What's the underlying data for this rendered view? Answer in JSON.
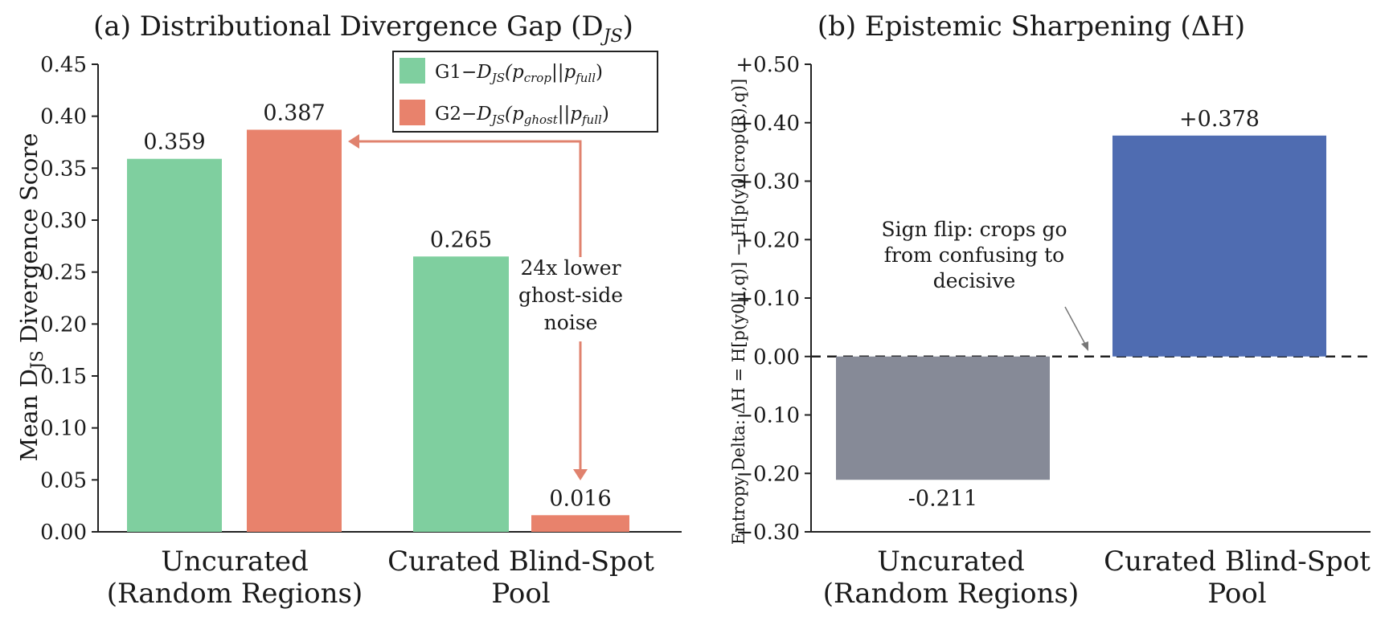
{
  "colors": {
    "g1": "#7fcf9f",
    "g2": "#e8826c",
    "neg": "#868a97",
    "pos": "#4f6cb1",
    "arrow": "#e0826e"
  },
  "chart_data": [
    {
      "type": "bar",
      "title": "(a) Distributional Divergence Gap (D",
      "title_sub": "JS",
      "title_end": ")",
      "ylabel": "Mean D",
      "ylabel_sub": "JS",
      "ylabel_end": " Divergence Score",
      "ylim": [
        0,
        0.45
      ],
      "yticks": [
        "0.00",
        "0.05",
        "0.10",
        "0.15",
        "0.20",
        "0.25",
        "0.30",
        "0.35",
        "0.40",
        "0.45"
      ],
      "categories": [
        [
          "Uncurated",
          "(Random Regions)"
        ],
        [
          "Curated Blind-Spot",
          "Pool"
        ]
      ],
      "series": [
        {
          "name": "G1−D_JS(p_crop||p_full)",
          "color_key": "g1",
          "values": [
            0.359,
            0.265
          ],
          "labels": [
            "0.359",
            "0.265"
          ]
        },
        {
          "name": "G2−D_JS(p_ghost||p_full)",
          "color_key": "g2",
          "values": [
            0.387,
            0.016
          ],
          "labels": [
            "0.387",
            "0.016"
          ]
        }
      ],
      "legend": {
        "position": "top-right",
        "items": [
          {
            "prefix": "G1−",
            "d": "D",
            "dsub": "JS",
            "open": "(p",
            "p1sub": "crop",
            "mid": "||p",
            "p2sub": "full",
            "close": ")"
          },
          {
            "prefix": "G2−",
            "d": "D",
            "dsub": "JS",
            "open": "(p",
            "p1sub": "ghost",
            "mid": "||p",
            "p2sub": "full",
            "close": ")"
          }
        ]
      },
      "annotation": [
        "24x lower",
        "ghost-side",
        "noise"
      ],
      "grid": false
    },
    {
      "type": "bar",
      "title": "(b) Epistemic Sharpening (ΔH)",
      "ylabel": "Entropy Delta: ΔH = H[p(y0|I,q)] − H[p(y0|crop(R),q)]",
      "ylim": [
        -0.3,
        0.5
      ],
      "yticks": [
        "−0.30",
        "−0.20",
        "−0.10",
        "0.00",
        "+0.10",
        "+0.20",
        "+0.30",
        "+0.40",
        "+0.50"
      ],
      "categories": [
        [
          "Uncurated",
          "(Random Regions)"
        ],
        [
          "Curated Blind-Spot",
          "Pool"
        ]
      ],
      "values": [
        -0.211,
        0.378
      ],
      "labels": [
        "-0.211",
        "+0.378"
      ],
      "annotation": [
        "Sign flip: crops go",
        "from confusing to",
        "decisive"
      ],
      "reference_line": 0.0,
      "grid": false
    }
  ]
}
